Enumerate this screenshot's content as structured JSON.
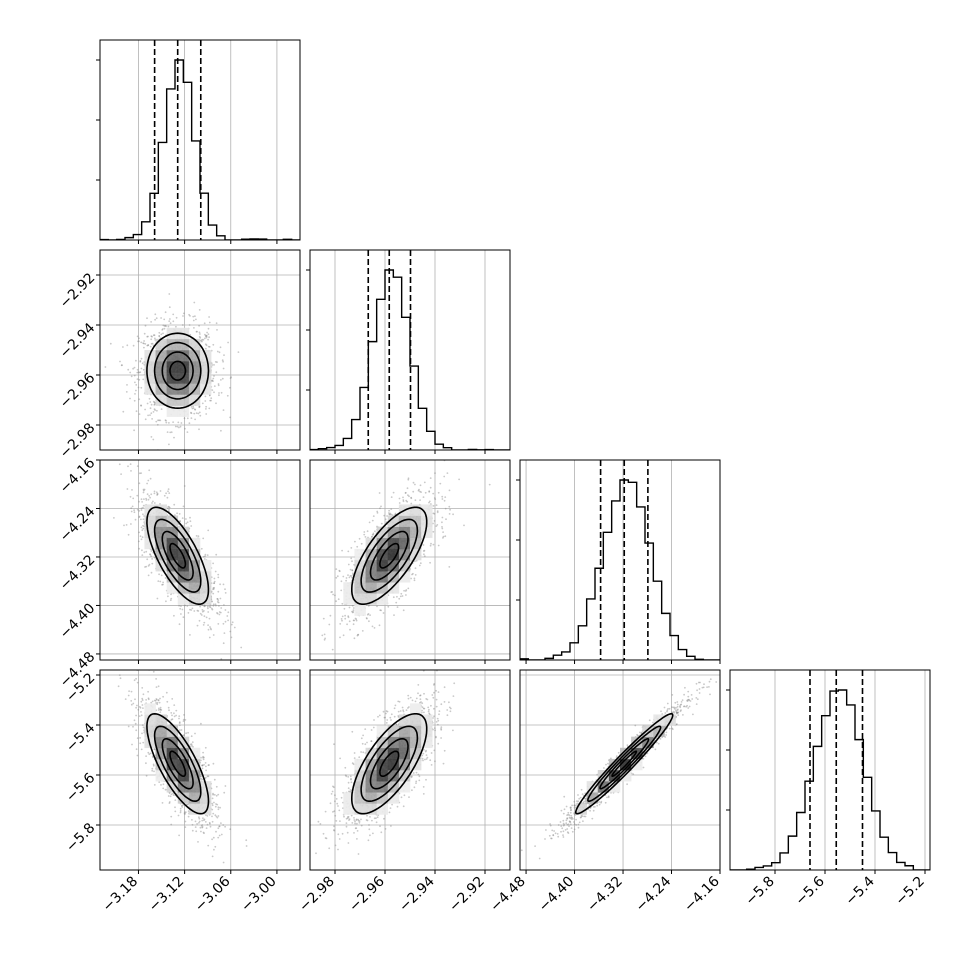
{
  "chart_data": {
    "type": "corner",
    "parameters": [
      {
        "ticks": [
          "−3.18",
          "−3.12",
          "−3.06",
          "−3.00"
        ],
        "tick_values": [
          -3.18,
          -3.12,
          -3.06,
          -3.0
        ],
        "range": [
          -3.23,
          -2.97
        ],
        "quantiles": [
          -3.159,
          -3.129,
          -3.099
        ],
        "peak": -3.129,
        "sigma": 0.02
      },
      {
        "ticks": [
          "−2.98",
          "−2.96",
          "−2.94",
          "−2.92"
        ],
        "tick_values": [
          -2.98,
          -2.96,
          -2.94,
          -2.92
        ],
        "range": [
          -2.99,
          -2.91
        ],
        "quantiles": [
          -2.9667,
          -2.9583,
          -2.9498
        ],
        "peak": -2.9583,
        "sigma": 0.0075
      },
      {
        "ticks": [
          "−4.48",
          "−4.40",
          "−4.32",
          "−4.24",
          "−4.16"
        ],
        "tick_values": [
          -4.48,
          -4.4,
          -4.32,
          -4.24,
          -4.16
        ],
        "range": [
          -4.49,
          -4.16
        ],
        "quantiles": [
          -4.357,
          -4.318,
          -4.279
        ],
        "peak": -4.318,
        "sigma": 0.04
      },
      {
        "ticks": [
          "−5.8",
          "−5.6",
          "−5.4",
          "−5.2"
        ],
        "tick_values": [
          -5.8,
          -5.6,
          -5.4,
          -5.2
        ],
        "range": [
          -5.98,
          -5.18
        ],
        "quantiles": [
          -5.66,
          -5.555,
          -5.45
        ],
        "peak": -5.555,
        "sigma": 0.1
      }
    ],
    "correlations": [
      [
        1,
        0.0,
        -0.7,
        -0.75
      ],
      [
        0.0,
        1,
        0.7,
        0.7
      ],
      [
        -0.7,
        0.7,
        1,
        0.97
      ],
      [
        -0.75,
        0.7,
        0.97,
        1
      ]
    ],
    "contour_levels_sigma": [
      0.5,
      1.0,
      1.5,
      2.0
    ],
    "grid": true,
    "scatter_color": "#888888",
    "line_color": "#000000"
  }
}
